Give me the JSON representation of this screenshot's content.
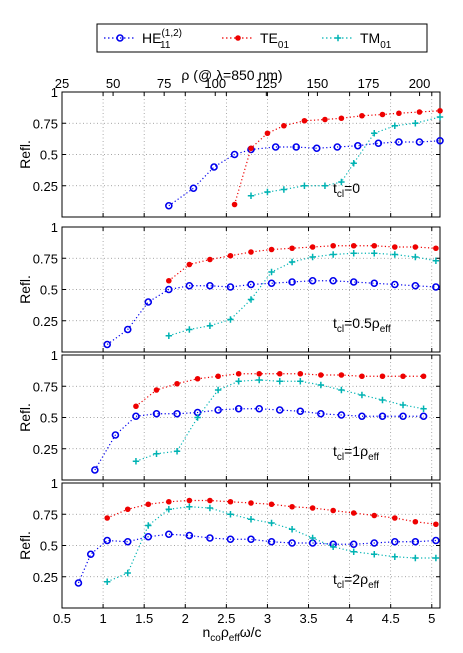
{
  "chart_data": {
    "type": "line",
    "legend": {
      "placement": "top",
      "entries": [
        {
          "series": "HE11",
          "label_main": "HE",
          "label_sub": "11",
          "label_sup": "(1,2)"
        },
        {
          "series": "TE01",
          "label_main": "TE",
          "label_sub": "01",
          "label_sup": ""
        },
        {
          "series": "TM01",
          "label_main": "TM",
          "label_sub": "01",
          "label_sup": ""
        }
      ]
    },
    "colors": {
      "HE11": "#0000ee",
      "TE01": "#ee0000",
      "TM01": "#00b3b3"
    },
    "markers": {
      "HE11": "circle",
      "TE01": "dot",
      "TM01": "plus"
    },
    "top_axis": {
      "label": "ρ (@ λ=850 nm)",
      "ticks": [
        "25",
        "50",
        "75",
        "100",
        "125",
        "150",
        "175",
        "200"
      ],
      "tick_values": [
        25,
        50,
        75,
        100,
        125,
        150,
        175,
        200
      ],
      "xlim": [
        25,
        210
      ]
    },
    "xlabel": {
      "n": "n",
      "n_sub": "co",
      "rho": "ρ",
      "rho_sub": "eff",
      "rest": "ω/c"
    },
    "xlim": [
      0.5,
      5.1
    ],
    "xticks": [
      "0.5",
      "1",
      "1.5",
      "2",
      "2.5",
      "3",
      "3.5",
      "4",
      "4.5",
      "5"
    ],
    "xtick_values": [
      0.5,
      1,
      1.5,
      2,
      2.5,
      3,
      3.5,
      4,
      4.5,
      5
    ],
    "ylabel": "Refl.",
    "ylim": [
      0,
      1
    ],
    "yticks": [
      "0.25",
      "0.5",
      "0.75",
      "1"
    ],
    "ytick_values": [
      0.25,
      0.5,
      0.75,
      1
    ],
    "grid": true,
    "panels": [
      {
        "annotation": {
          "t": "t",
          "t_sub": "cl",
          "eq": "=0",
          "rho": "",
          "rho_sub": ""
        },
        "series": [
          {
            "name": "HE11",
            "x": [
              1.8,
              2.1,
              2.35,
              2.6,
              2.8,
              3.1,
              3.35,
              3.6,
              3.85,
              4.1,
              4.35,
              4.6,
              4.85,
              5.1
            ],
            "y": [
              0.09,
              0.23,
              0.4,
              0.5,
              0.54,
              0.56,
              0.56,
              0.55,
              0.56,
              0.57,
              0.59,
              0.6,
              0.6,
              0.61
            ]
          },
          {
            "name": "TE01",
            "x": [
              2.6,
              2.8,
              3.0,
              3.2,
              3.45,
              3.7,
              3.9,
              4.15,
              4.4,
              4.6,
              4.85,
              5.1
            ],
            "y": [
              0.1,
              0.55,
              0.67,
              0.73,
              0.77,
              0.78,
              0.79,
              0.81,
              0.82,
              0.83,
              0.84,
              0.85
            ]
          },
          {
            "name": "TM01",
            "x": [
              2.8,
              3.0,
              3.2,
              3.45,
              3.7,
              3.9,
              4.05,
              4.3,
              4.55,
              4.8,
              5.1
            ],
            "y": [
              0.17,
              0.2,
              0.22,
              0.25,
              0.25,
              0.28,
              0.43,
              0.67,
              0.73,
              0.75,
              0.8
            ]
          }
        ]
      },
      {
        "annotation": {
          "t": "t",
          "t_sub": "cl",
          "eq": "=0.5",
          "rho": "ρ",
          "rho_sub": "eff"
        },
        "series": [
          {
            "name": "HE11",
            "x": [
              1.05,
              1.3,
              1.55,
              1.8,
              2.05,
              2.3,
              2.55,
              2.8,
              3.05,
              3.3,
              3.55,
              3.8,
              4.05,
              4.3,
              4.55,
              4.8,
              5.05
            ],
            "y": [
              0.06,
              0.18,
              0.4,
              0.5,
              0.53,
              0.53,
              0.52,
              0.54,
              0.55,
              0.56,
              0.57,
              0.57,
              0.56,
              0.55,
              0.54,
              0.53,
              0.52
            ]
          },
          {
            "name": "TE01",
            "x": [
              1.8,
              2.05,
              2.3,
              2.55,
              2.8,
              3.05,
              3.3,
              3.55,
              3.8,
              4.05,
              4.3,
              4.55,
              4.8,
              5.05
            ],
            "y": [
              0.57,
              0.7,
              0.74,
              0.77,
              0.8,
              0.82,
              0.83,
              0.84,
              0.85,
              0.85,
              0.85,
              0.84,
              0.84,
              0.83
            ]
          },
          {
            "name": "TM01",
            "x": [
              1.8,
              2.05,
              2.3,
              2.55,
              2.8,
              3.05,
              3.3,
              3.55,
              3.8,
              4.05,
              4.3,
              4.55,
              4.8,
              5.05
            ],
            "y": [
              0.13,
              0.18,
              0.21,
              0.26,
              0.42,
              0.64,
              0.72,
              0.76,
              0.78,
              0.79,
              0.79,
              0.78,
              0.76,
              0.73
            ]
          }
        ]
      },
      {
        "annotation": {
          "t": "t",
          "t_sub": "cl",
          "eq": "=1",
          "rho": "ρ",
          "rho_sub": "eff"
        },
        "series": [
          {
            "name": "HE11",
            "x": [
              0.9,
              1.15,
              1.4,
              1.65,
              1.9,
              2.15,
              2.4,
              2.65,
              2.9,
              3.15,
              3.4,
              3.65,
              3.9,
              4.15,
              4.4,
              4.65,
              4.9
            ],
            "y": [
              0.08,
              0.36,
              0.51,
              0.53,
              0.53,
              0.54,
              0.56,
              0.57,
              0.57,
              0.56,
              0.55,
              0.53,
              0.52,
              0.51,
              0.51,
              0.51,
              0.51
            ]
          },
          {
            "name": "TE01",
            "x": [
              1.4,
              1.65,
              1.9,
              2.15,
              2.4,
              2.65,
              2.9,
              3.15,
              3.4,
              3.65,
              3.9,
              4.15,
              4.4,
              4.65,
              4.9
            ],
            "y": [
              0.59,
              0.72,
              0.77,
              0.81,
              0.83,
              0.85,
              0.85,
              0.85,
              0.85,
              0.84,
              0.84,
              0.83,
              0.83,
              0.83,
              0.83
            ]
          },
          {
            "name": "TM01",
            "x": [
              1.4,
              1.65,
              1.9,
              2.15,
              2.4,
              2.65,
              2.9,
              3.15,
              3.4,
              3.65,
              3.9,
              4.15,
              4.4,
              4.65,
              4.9
            ],
            "y": [
              0.15,
              0.21,
              0.23,
              0.5,
              0.72,
              0.79,
              0.8,
              0.79,
              0.79,
              0.76,
              0.72,
              0.68,
              0.64,
              0.6,
              0.57
            ]
          }
        ]
      },
      {
        "annotation": {
          "t": "t",
          "t_sub": "cl",
          "eq": "=2",
          "rho": "ρ",
          "rho_sub": "eff"
        },
        "series": [
          {
            "name": "HE11",
            "x": [
              0.7,
              0.85,
              1.05,
              1.3,
              1.55,
              1.8,
              2.05,
              2.3,
              2.55,
              2.8,
              3.05,
              3.3,
              3.55,
              3.8,
              4.05,
              4.3,
              4.55,
              4.8,
              5.05
            ],
            "y": [
              0.2,
              0.43,
              0.54,
              0.53,
              0.57,
              0.59,
              0.58,
              0.56,
              0.55,
              0.55,
              0.53,
              0.52,
              0.52,
              0.51,
              0.51,
              0.52,
              0.53,
              0.53,
              0.54
            ]
          },
          {
            "name": "TE01",
            "x": [
              1.05,
              1.3,
              1.55,
              1.8,
              2.05,
              2.3,
              2.55,
              2.8,
              3.05,
              3.3,
              3.55,
              3.8,
              4.05,
              4.3,
              4.55,
              4.8,
              5.05
            ],
            "y": [
              0.72,
              0.79,
              0.83,
              0.85,
              0.86,
              0.86,
              0.85,
              0.84,
              0.83,
              0.81,
              0.8,
              0.78,
              0.76,
              0.74,
              0.72,
              0.69,
              0.67
            ]
          },
          {
            "name": "TM01",
            "x": [
              1.05,
              1.3,
              1.55,
              1.8,
              2.05,
              2.3,
              2.55,
              2.8,
              3.05,
              3.3,
              3.55,
              3.8,
              4.05,
              4.3,
              4.55,
              4.8,
              5.05
            ],
            "y": [
              0.21,
              0.28,
              0.66,
              0.79,
              0.81,
              0.8,
              0.75,
              0.71,
              0.68,
              0.63,
              0.56,
              0.49,
              0.45,
              0.43,
              0.41,
              0.4,
              0.4
            ]
          }
        ]
      }
    ]
  }
}
